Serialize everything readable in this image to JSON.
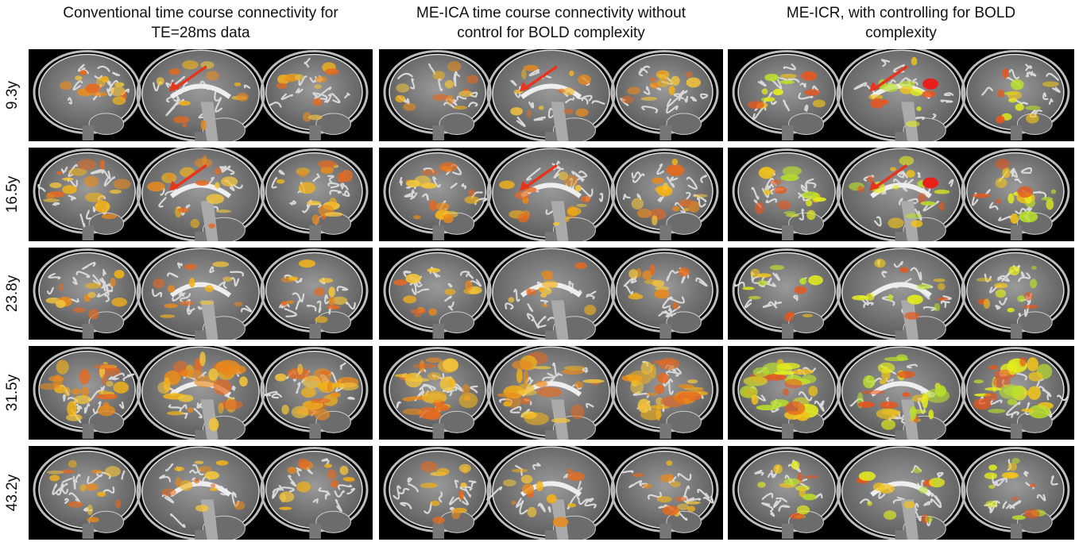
{
  "columns": [
    {
      "title_lines": [
        "Conventional time course connectivity for",
        "TE=28ms data"
      ]
    },
    {
      "title_lines": [
        "ME-ICA time course connectivity without",
        "control for BOLD complexity"
      ]
    },
    {
      "title_lines": [
        "ME-ICR, with controlling for BOLD",
        "complexity"
      ]
    }
  ],
  "rows": [
    {
      "label": "9.3y"
    },
    {
      "label": "16.5y"
    },
    {
      "label": "23.8y"
    },
    {
      "label": "31.5y"
    },
    {
      "label": "43.2y"
    }
  ]
}
